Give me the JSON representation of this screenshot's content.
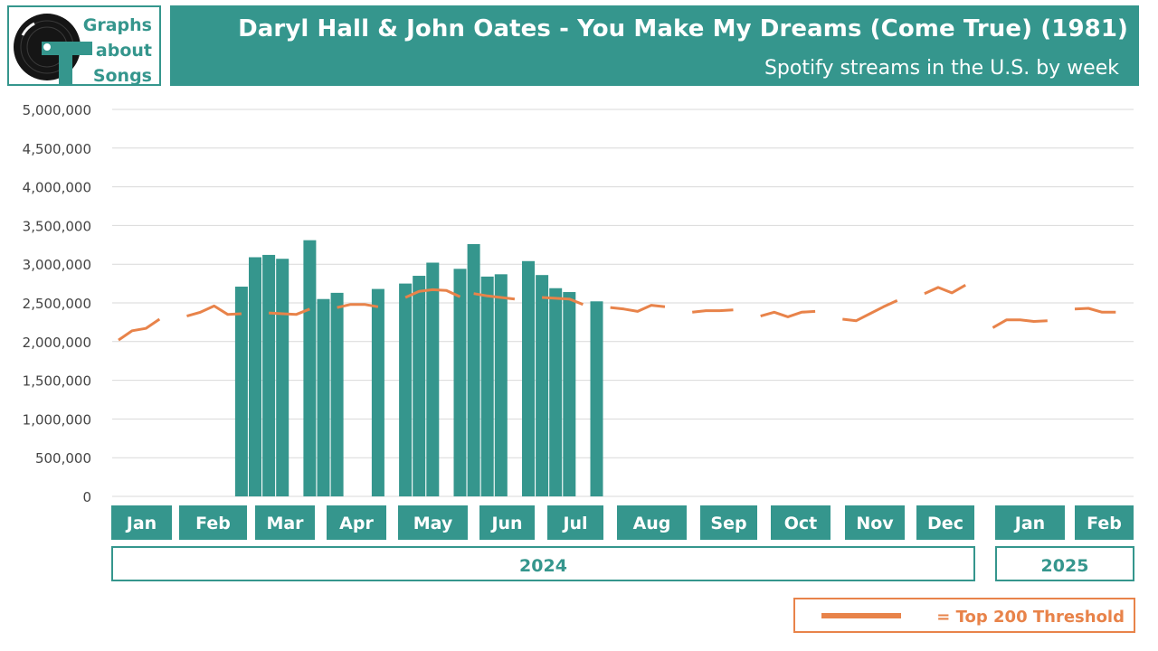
{
  "logo": {
    "lines": [
      "Graphs",
      "about",
      "Songs"
    ],
    "icon": "vinyl-record-icon"
  },
  "header": {
    "title": "Daryl Hall & John Oates - You Make My Dreams (Come True) (1981)",
    "subtitle": "Spotify streams in the U.S. by week"
  },
  "colors": {
    "bar": "#35968D",
    "threshold": "#E8834A",
    "grid": "#D9D9D9"
  },
  "chart_data": {
    "type": "bar",
    "title": "Daryl Hall & John Oates - You Make My Dreams (Come True) (1981)",
    "subtitle": "Spotify streams in the U.S. by week",
    "ylim": [
      0,
      5000000
    ],
    "yticks": [
      "5,000,000",
      "4,500,000",
      "4,000,000",
      "3,500,000",
      "3,000,000",
      "2,500,000",
      "2,000,000",
      "1,500,000",
      "1,000,000",
      "500,000",
      "0"
    ],
    "grid": true,
    "months": [
      "Jan",
      "Feb",
      "Mar",
      "Apr",
      "May",
      "Jun",
      "Jul",
      "Aug",
      "Sep",
      "Oct",
      "Nov",
      "Dec",
      "Jan",
      "Feb"
    ],
    "years": [
      "2024",
      "2025"
    ],
    "bars": [
      {
        "week": 9,
        "value": 2710000
      },
      {
        "week": 10,
        "value": 3090000
      },
      {
        "week": 11,
        "value": 3120000
      },
      {
        "week": 12,
        "value": 3070000
      },
      {
        "week": 14,
        "value": 3310000
      },
      {
        "week": 15,
        "value": 2550000
      },
      {
        "week": 16,
        "value": 2630000
      },
      {
        "week": 19,
        "value": 2680000
      },
      {
        "week": 21,
        "value": 2750000
      },
      {
        "week": 22,
        "value": 2850000
      },
      {
        "week": 23,
        "value": 3020000
      },
      {
        "week": 25,
        "value": 2940000
      },
      {
        "week": 26,
        "value": 3260000
      },
      {
        "week": 27,
        "value": 2840000
      },
      {
        "week": 28,
        "value": 2870000
      },
      {
        "week": 30,
        "value": 3040000
      },
      {
        "week": 31,
        "value": 2860000
      },
      {
        "week": 32,
        "value": 2690000
      },
      {
        "week": 33,
        "value": 2640000
      },
      {
        "week": 35,
        "value": 2520000
      }
    ],
    "threshold_segments": [
      [
        [
          0,
          2020000
        ],
        [
          1,
          2140000
        ],
        [
          2,
          2170000
        ],
        [
          3,
          2290000
        ]
      ],
      [
        [
          5,
          2330000
        ],
        [
          6,
          2380000
        ],
        [
          7,
          2460000
        ],
        [
          8,
          2350000
        ],
        [
          9,
          2360000
        ]
      ],
      [
        [
          11,
          2370000
        ],
        [
          12,
          2360000
        ],
        [
          13,
          2350000
        ],
        [
          14,
          2420000
        ]
      ],
      [
        [
          16,
          2440000
        ],
        [
          17,
          2480000
        ],
        [
          18,
          2480000
        ],
        [
          19,
          2450000
        ]
      ],
      [
        [
          21,
          2570000
        ],
        [
          22,
          2650000
        ],
        [
          23,
          2670000
        ],
        [
          24,
          2660000
        ],
        [
          25,
          2580000
        ]
      ],
      [
        [
          26,
          2620000
        ],
        [
          27,
          2590000
        ],
        [
          28,
          2570000
        ],
        [
          29,
          2550000
        ]
      ],
      [
        [
          31,
          2570000
        ],
        [
          32,
          2560000
        ],
        [
          33,
          2550000
        ],
        [
          34,
          2480000
        ]
      ],
      [
        [
          36,
          2440000
        ],
        [
          37,
          2420000
        ],
        [
          38,
          2390000
        ],
        [
          39,
          2470000
        ],
        [
          40,
          2450000
        ]
      ],
      [
        [
          42,
          2380000
        ],
        [
          43,
          2400000
        ],
        [
          44,
          2400000
        ],
        [
          45,
          2410000
        ]
      ],
      [
        [
          47,
          2330000
        ],
        [
          48,
          2380000
        ],
        [
          49,
          2320000
        ],
        [
          50,
          2380000
        ],
        [
          51,
          2390000
        ]
      ],
      [
        [
          53,
          2290000
        ],
        [
          54,
          2270000
        ],
        [
          55,
          2360000
        ],
        [
          56,
          2450000
        ],
        [
          57,
          2530000
        ]
      ],
      [
        [
          59,
          2620000
        ],
        [
          60,
          2700000
        ],
        [
          61,
          2630000
        ],
        [
          62,
          2730000
        ]
      ],
      [
        [
          64,
          2180000
        ],
        [
          65,
          2280000
        ],
        [
          66,
          2280000
        ],
        [
          67,
          2260000
        ],
        [
          68,
          2270000
        ]
      ],
      [
        [
          70,
          2420000
        ],
        [
          71,
          2430000
        ],
        [
          72,
          2380000
        ],
        [
          73,
          2380000
        ]
      ]
    ],
    "legend": {
      "label": "= Top 200 Threshold",
      "position": "bottom-right"
    }
  }
}
